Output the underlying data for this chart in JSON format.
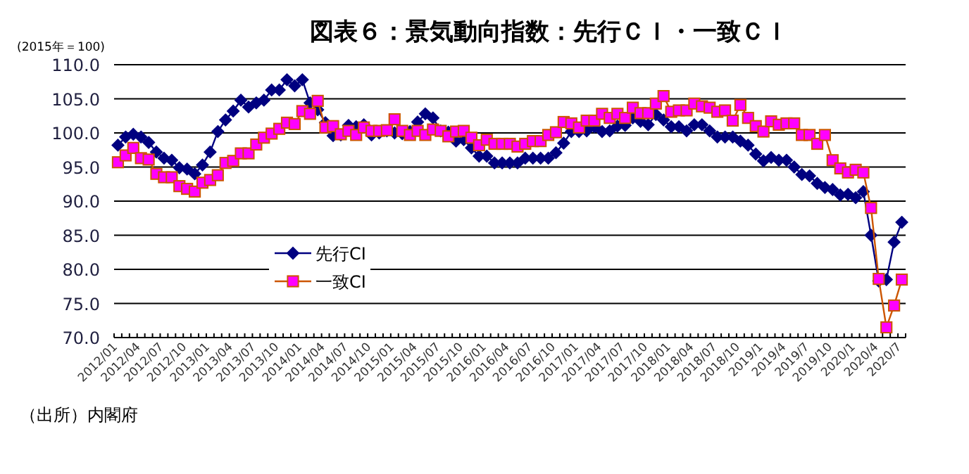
{
  "chart_data": {
    "type": "line",
    "title": "図表６：景気動向指数：先行ＣＩ・一致ＣＩ",
    "ylabel": "(2015年＝100)",
    "annotations": [
      "（出所）内閣府"
    ],
    "categories": [
      "2012/01",
      null,
      null,
      "2012/04",
      null,
      null,
      "2012/07",
      null,
      null,
      "2012/10",
      null,
      null,
      "2013/01",
      null,
      null,
      "2013/04",
      null,
      null,
      "2013/07",
      null,
      null,
      "2013/10",
      null,
      null,
      "2014/01",
      null,
      null,
      "2014/04",
      null,
      null,
      "2014/07",
      null,
      null,
      "2014/10",
      null,
      null,
      "2015/01",
      null,
      null,
      "2015/04",
      null,
      null,
      "2015/07",
      null,
      null,
      "2015/10",
      null,
      null,
      "2016/01",
      null,
      null,
      "2016/04",
      null,
      null,
      "2016/07",
      null,
      null,
      "2016/10",
      null,
      null,
      "2017/01",
      null,
      null,
      "2017/04",
      null,
      null,
      "2017/07",
      null,
      null,
      "2017/10",
      null,
      null,
      "2018/01",
      null,
      null,
      "2018/04",
      null,
      null,
      "2018/07",
      null,
      null,
      "2018/10",
      null,
      null,
      "2019/1",
      null,
      null,
      "2019/4",
      null,
      null,
      "2019/7",
      null,
      null,
      "2019/10",
      null,
      null,
      "2020/1",
      null,
      null,
      "2020/4",
      null,
      null,
      "2020/7"
    ],
    "series": [
      {
        "name": "先行CI",
        "color": "#000080",
        "marker": "diamond",
        "values": [
          98.2,
          99.4,
          99.8,
          99.4,
          98.6,
          97.2,
          96.3,
          96.0,
          94.9,
          94.7,
          94.0,
          95.3,
          97.2,
          100.2,
          101.9,
          103.2,
          104.8,
          103.8,
          104.4,
          104.8,
          106.3,
          106.3,
          107.8,
          106.9,
          107.8,
          104.4,
          103.4,
          101.5,
          99.6,
          99.7,
          101.1,
          100.9,
          101.2,
          99.7,
          100.0,
          100.3,
          100.0,
          99.9,
          100.2,
          101.6,
          102.8,
          102.2,
          100.3,
          100.1,
          98.8,
          99.0,
          97.8,
          96.6,
          96.6,
          95.6,
          95.6,
          95.6,
          95.6,
          96.3,
          96.3,
          96.3,
          96.3,
          97.1,
          98.5,
          100.2,
          100.2,
          100.3,
          100.9,
          100.2,
          100.3,
          101.0,
          101.1,
          102.2,
          101.7,
          101.2,
          102.7,
          101.9,
          100.9,
          100.9,
          100.3,
          101.2,
          101.2,
          100.3,
          99.4,
          99.4,
          99.4,
          98.8,
          98.2,
          96.9,
          95.9,
          96.4,
          96.0,
          96.0,
          95.0,
          93.9,
          93.7,
          92.6,
          92.0,
          91.7,
          90.9,
          91.0,
          90.5,
          91.4,
          85.0,
          78.3,
          78.5,
          84.0,
          86.9
        ]
      },
      {
        "name": "一致CI",
        "color": "#ff00ff",
        "marker": "square",
        "values": [
          95.7,
          96.7,
          97.8,
          96.3,
          96.1,
          94.0,
          93.5,
          93.5,
          92.2,
          91.8,
          91.4,
          92.7,
          93.1,
          93.8,
          95.6,
          95.9,
          97.0,
          97.0,
          98.3,
          99.3,
          99.9,
          100.6,
          101.5,
          101.3,
          103.2,
          102.8,
          104.7,
          100.8,
          101.0,
          99.8,
          100.3,
          99.7,
          100.8,
          100.3,
          100.3,
          100.4,
          102.0,
          100.3,
          99.7,
          100.3,
          99.7,
          100.5,
          100.3,
          99.5,
          100.2,
          100.3,
          99.3,
          98.2,
          99.0,
          98.4,
          98.4,
          98.4,
          98.0,
          98.4,
          98.8,
          98.8,
          99.7,
          100.1,
          101.6,
          101.4,
          100.8,
          101.8,
          101.8,
          102.8,
          102.2,
          102.8,
          102.2,
          103.7,
          102.9,
          102.9,
          104.3,
          105.4,
          103.1,
          103.3,
          103.3,
          104.3,
          103.9,
          103.7,
          103.1,
          103.3,
          101.8,
          104.1,
          102.2,
          101.0,
          100.2,
          101.7,
          101.2,
          101.4,
          101.4,
          99.7,
          99.7,
          98.4,
          99.7,
          96.0,
          94.8,
          94.2,
          94.6,
          94.2,
          89.0,
          78.6,
          71.5,
          74.7,
          78.5
        ]
      }
    ],
    "ylim": [
      70,
      110
    ],
    "yticks": [
      {
        "value": 70,
        "label": "70.0"
      },
      {
        "value": 75,
        "label": "75.0"
      },
      {
        "value": 80,
        "label": "80.0"
      },
      {
        "value": 85,
        "label": "85.0"
      },
      {
        "value": 90,
        "label": "90.0"
      },
      {
        "value": 95,
        "label": "95.0"
      },
      {
        "value": 100,
        "label": "100.0"
      },
      {
        "value": 105,
        "label": "105.0"
      },
      {
        "value": 110,
        "label": "110.0"
      }
    ],
    "grid": "y",
    "legend": "bottom left",
    "line_style": "solid"
  }
}
